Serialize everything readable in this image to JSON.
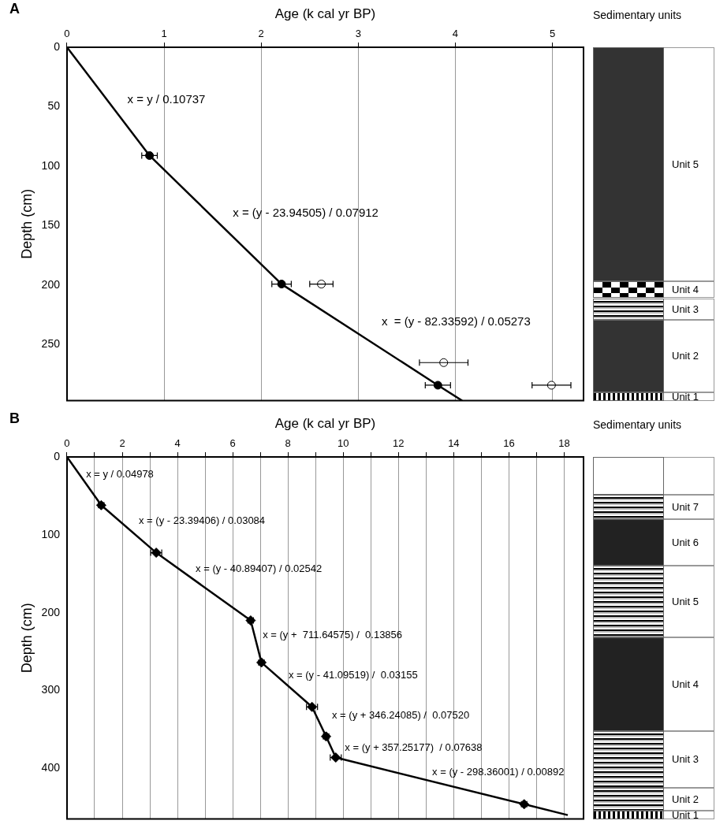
{
  "chart_data": [
    {
      "type": "scatter",
      "title": "A",
      "xlabel": "Age (k cal yr BP)",
      "ylabel": "Depth (cm)",
      "xlim": [
        0,
        5.32
      ],
      "ylim": [
        297,
        0
      ],
      "xticks": [
        0,
        1,
        2,
        3,
        4,
        5
      ],
      "yticks": [
        0,
        50,
        100,
        150,
        200,
        250
      ],
      "grid": "x",
      "series": [
        {
          "type": "line",
          "color": "#000000",
          "marker": "none",
          "x": [
            0,
            0.85,
            2.21,
            3.82,
            4.07
          ],
          "values": [
            0,
            91,
            199,
            284,
            297
          ]
        },
        {
          "type": "scatter",
          "color": "#000000",
          "marker": "circle",
          "x": [
            0.85,
            2.21,
            3.82
          ],
          "values": [
            91,
            199,
            284
          ],
          "xerrors": [
            0.08,
            0.1,
            0.13
          ]
        },
        {
          "type": "scatter",
          "color": "#ffffff",
          "marker": "circle",
          "x": [
            2.62,
            3.88,
            4.99
          ],
          "values": [
            199,
            265,
            284
          ],
          "xerrors": [
            0.12,
            0.25,
            0.2
          ]
        }
      ],
      "annotations": [
        "Sedimentary units",
        "Unit 5",
        "Unit 4",
        "Unit 3",
        "Unit 2",
        "Unit 1",
        "x = y / 0.10737",
        "x = (y - 23.94505) / 0.07912",
        "x  = (y - 82.33592) / 0.05273"
      ]
    },
    {
      "type": "scatter",
      "title": "B",
      "xlabel": "Age (k cal yr BP)",
      "ylabel": "Depth (cm)",
      "xlim": [
        0,
        18.7
      ],
      "ylim": [
        465,
        0
      ],
      "xticks": [
        0,
        {
          "value": 1,
          "label": null
        },
        2,
        {
          "value": 3,
          "label": null
        },
        4,
        {
          "value": 5,
          "label": null
        },
        6,
        {
          "value": 7,
          "label": null
        },
        8,
        {
          "value": 9,
          "label": null
        },
        10,
        {
          "value": 11,
          "label": null
        },
        12,
        {
          "value": 13,
          "label": null
        },
        14,
        {
          "value": 15,
          "label": null
        },
        16,
        {
          "value": 17,
          "label": null
        },
        18
      ],
      "yticks": [
        0,
        100,
        200,
        300,
        400
      ],
      "grid": "x",
      "series": [
        {
          "type": "line",
          "color": "#000000",
          "x": [
            0,
            1.24,
            3.23,
            6.65,
            7.04,
            8.87,
            9.38,
            9.73,
            16.55,
            18.13
          ],
          "values": [
            0,
            62,
            123,
            210,
            264,
            321,
            359,
            386,
            446,
            460
          ]
        },
        {
          "type": "scatter",
          "color": "#000000",
          "x": [
            1.24,
            3.23,
            6.65,
            7.04,
            8.87,
            9.38,
            9.73,
            16.55
          ],
          "values": [
            62,
            123,
            210,
            264,
            321,
            359,
            386,
            446
          ],
          "xerrors": [
            0.1,
            0.2,
            0.1,
            0.1,
            0.2,
            0.1,
            0.2,
            0.1
          ]
        }
      ],
      "annotations": [
        "Sedimentary units",
        "Unit 7",
        "Unit 6",
        "Unit 5",
        "Unit 4",
        "Unit 3",
        "Unit 2",
        "Unit 1",
        "x = y / 0.04978",
        "x = (y - 23.39406) / 0.03084",
        "x = (y - 40.89407) / 0.02542",
        "x = (y +  711.64575) /  0.13856",
        "x = (y - 41.09519) /  0.03155",
        "x = (y + 346.24085) /  0.07520",
        "x = (y + 357.25177)  / 0.07638",
        "x = (y - 298.36001) / 0.00892"
      ]
    }
  ]
}
